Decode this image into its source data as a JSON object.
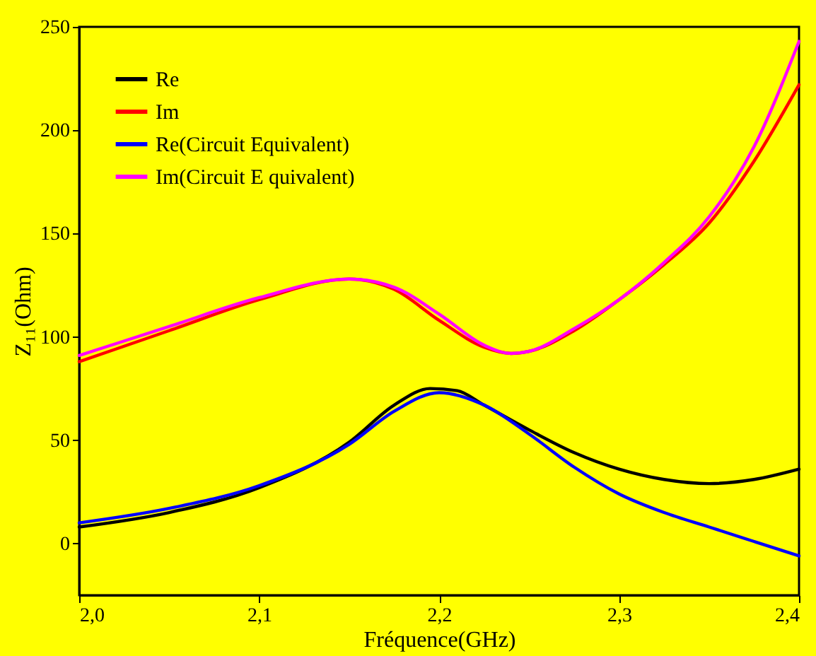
{
  "chart_data": {
    "type": "line",
    "xlabel": "Fréquence(GHz)",
    "ylabel": "Z₁₁(Ohm)",
    "legend": "top left",
    "xlim": [
      2.0,
      2.4
    ],
    "ylim": [
      -25,
      250
    ],
    "xticks": [
      {
        "value": 2.0,
        "label": "2,0"
      },
      {
        "value": 2.1,
        "label": "2,1"
      },
      {
        "value": 2.2,
        "label": "2,2"
      },
      {
        "value": 2.3,
        "label": "2,3"
      },
      {
        "value": 2.4,
        "label": "2,4"
      }
    ],
    "yticks": [
      0,
      50,
      100,
      150,
      200,
      250
    ],
    "series": [
      {
        "name": "Re",
        "color": "#000000",
        "x": [
          2.0,
          2.05,
          2.1,
          2.15,
          2.175,
          2.195,
          2.21,
          2.225,
          2.25,
          2.275,
          2.3,
          2.325,
          2.35,
          2.375,
          2.4
        ],
        "values": [
          8,
          15,
          27,
          49,
          67,
          75,
          74,
          67,
          55,
          44,
          36,
          31,
          29,
          31,
          36
        ]
      },
      {
        "name": "Im",
        "color": "#ff0000",
        "x": [
          2.0,
          2.05,
          2.1,
          2.15,
          2.175,
          2.2,
          2.225,
          2.24,
          2.25,
          2.275,
          2.3,
          2.325,
          2.35,
          2.375,
          2.4
        ],
        "values": [
          88,
          103,
          118,
          128,
          123,
          108,
          95,
          92,
          93,
          103,
          118,
          135,
          155,
          185,
          222
        ]
      },
      {
        "name": "Re(Circuit Equivalent)",
        "color": "#0000ff",
        "x": [
          2.0,
          2.05,
          2.1,
          2.15,
          2.175,
          2.2,
          2.225,
          2.25,
          2.275,
          2.3,
          2.325,
          2.35,
          2.375,
          2.4
        ],
        "values": [
          10,
          17,
          28,
          48,
          64,
          73,
          67,
          53,
          37,
          24,
          15,
          8,
          1,
          -6
        ]
      },
      {
        "name": "Im(Circuit E quivalent)",
        "color": "#ff00ff",
        "x": [
          2.0,
          2.05,
          2.1,
          2.15,
          2.175,
          2.2,
          2.225,
          2.24,
          2.25,
          2.275,
          2.3,
          2.325,
          2.35,
          2.375,
          2.4
        ],
        "values": [
          91,
          105,
          119,
          128,
          124,
          111,
          96,
          92,
          93,
          104,
          118,
          136,
          158,
          192,
          243
        ]
      }
    ]
  }
}
